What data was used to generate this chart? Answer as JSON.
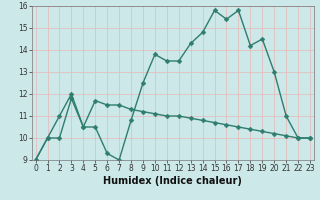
{
  "xlabel": "Humidex (Indice chaleur)",
  "bg_color": "#cce8e8",
  "line_color": "#2e7d6e",
  "grid_color": "#b0d8d8",
  "curve1_x": [
    0,
    1,
    2,
    3,
    4,
    5,
    6,
    7,
    8,
    9,
    10,
    11,
    12,
    13,
    14,
    15,
    16,
    17,
    18,
    19,
    20,
    21,
    22,
    23
  ],
  "curve1_y": [
    9,
    10,
    11,
    12,
    10.5,
    10.5,
    9.3,
    9.0,
    10.8,
    12.5,
    13.8,
    13.5,
    13.5,
    14.3,
    14.8,
    15.8,
    15.4,
    15.8,
    14.2,
    14.5,
    13.0,
    11.0,
    10.0,
    10.0
  ],
  "curve2_x": [
    0,
    1,
    2,
    3,
    4,
    5,
    6,
    7,
    8,
    9,
    10,
    11,
    12,
    13,
    14,
    15,
    16,
    17,
    18,
    19,
    20,
    21,
    22,
    23
  ],
  "curve2_y": [
    9.0,
    10.0,
    10.0,
    11.8,
    10.5,
    11.7,
    11.5,
    11.5,
    11.3,
    11.2,
    11.1,
    11.0,
    11.0,
    10.9,
    10.8,
    10.7,
    10.6,
    10.5,
    10.4,
    10.3,
    10.2,
    10.1,
    10.0,
    10.0
  ],
  "xlim": [
    0,
    23
  ],
  "ylim": [
    9,
    16
  ],
  "yticks": [
    9,
    10,
    11,
    12,
    13,
    14,
    15,
    16
  ],
  "xticks": [
    0,
    1,
    2,
    3,
    4,
    5,
    6,
    7,
    8,
    9,
    10,
    11,
    12,
    13,
    14,
    15,
    16,
    17,
    18,
    19,
    20,
    21,
    22,
    23
  ],
  "xtick_labels": [
    "0",
    "1",
    "2",
    "3",
    "4",
    "5",
    "6",
    "7",
    "8",
    "9",
    "10",
    "11",
    "12",
    "13",
    "14",
    "15",
    "16",
    "17",
    "18",
    "19",
    "20",
    "21",
    "22",
    "23"
  ],
  "markersize": 2.5,
  "linewidth": 1.0,
  "tick_fontsize": 5.5,
  "xlabel_fontsize": 7
}
